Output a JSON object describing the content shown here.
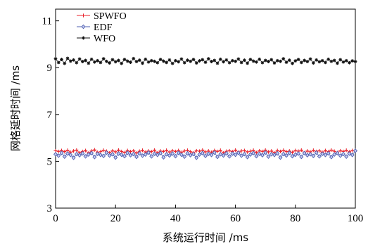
{
  "chart_data": {
    "type": "line",
    "xlabel": "系统运行时间 /ms",
    "ylabel": "网格延时时间 /ms",
    "xlim": [
      0,
      100
    ],
    "ylim": [
      3,
      11.5
    ],
    "xticks": [
      "0",
      "20",
      "40",
      "60",
      "80",
      "100"
    ],
    "yticks": [
      "3",
      "5",
      "7",
      "9",
      "11"
    ],
    "legend_position": "top-left",
    "x": [
      0,
      1,
      2,
      3,
      4,
      5,
      6,
      7,
      8,
      9,
      10,
      11,
      12,
      13,
      14,
      15,
      16,
      17,
      18,
      19,
      20,
      21,
      22,
      23,
      24,
      25,
      26,
      27,
      28,
      29,
      30,
      31,
      32,
      33,
      34,
      35,
      36,
      37,
      38,
      39,
      40,
      41,
      42,
      43,
      44,
      45,
      46,
      47,
      48,
      49,
      50,
      51,
      52,
      53,
      54,
      55,
      56,
      57,
      58,
      59,
      60,
      61,
      62,
      63,
      64,
      65,
      66,
      67,
      68,
      69,
      70,
      71,
      72,
      73,
      74,
      75,
      76,
      77,
      78,
      79,
      80,
      81,
      82,
      83,
      84,
      85,
      86,
      87,
      88,
      89,
      90,
      91,
      92,
      93,
      94,
      95,
      96,
      97,
      98,
      99,
      100
    ],
    "series": [
      {
        "name": "SPWFO",
        "color": "#e8202a",
        "marker": "plus",
        "values": [
          5.45,
          5.42,
          5.46,
          5.41,
          5.47,
          5.38,
          5.44,
          5.48,
          5.36,
          5.42,
          5.46,
          5.35,
          5.44,
          5.49,
          5.38,
          5.41,
          5.47,
          5.43,
          5.36,
          5.45,
          5.4,
          5.48,
          5.42,
          5.37,
          5.46,
          5.41,
          5.45,
          5.35,
          5.43,
          5.47,
          5.39,
          5.44,
          5.41,
          5.48,
          5.36,
          5.44,
          5.42,
          5.47,
          5.39,
          5.45,
          5.42,
          5.46,
          5.38,
          5.44,
          5.47,
          5.41,
          5.36,
          5.45,
          5.43,
          5.48,
          5.4,
          5.44,
          5.38,
          5.46,
          5.42,
          5.47,
          5.35,
          5.43,
          5.45,
          5.41,
          5.48,
          5.39,
          5.44,
          5.46,
          5.4,
          5.43,
          5.47,
          5.37,
          5.45,
          5.42,
          5.48,
          5.4,
          5.44,
          5.36,
          5.46,
          5.42,
          5.47,
          5.41,
          5.44,
          5.38,
          5.46,
          5.43,
          5.48,
          5.36,
          5.44,
          5.4,
          5.47,
          5.42,
          5.45,
          5.38,
          5.46,
          5.41,
          5.48,
          5.43,
          5.37,
          5.45,
          5.42,
          5.47,
          5.4,
          5.46,
          5.44
        ]
      },
      {
        "name": "EDF",
        "color": "#4f5fb0",
        "marker": "diamond",
        "values": [
          5.3,
          5.24,
          5.36,
          5.2,
          5.33,
          5.27,
          5.15,
          5.31,
          5.26,
          5.34,
          5.21,
          5.29,
          5.35,
          5.18,
          5.32,
          5.27,
          5.23,
          5.37,
          5.25,
          5.3,
          5.16,
          5.33,
          5.28,
          5.22,
          5.36,
          5.26,
          5.31,
          5.19,
          5.34,
          5.24,
          5.29,
          5.37,
          5.21,
          5.32,
          5.27,
          5.35,
          5.17,
          5.3,
          5.25,
          5.33,
          5.22,
          5.36,
          5.28,
          5.2,
          5.34,
          5.26,
          5.31,
          5.15,
          5.29,
          5.35,
          5.23,
          5.32,
          5.27,
          5.37,
          5.19,
          5.3,
          5.25,
          5.34,
          5.21,
          5.33,
          5.28,
          5.36,
          5.24,
          5.31,
          5.18,
          5.29,
          5.35,
          5.22,
          5.32,
          5.26,
          5.37,
          5.2,
          5.3,
          5.27,
          5.34,
          5.16,
          5.31,
          5.25,
          5.36,
          5.22,
          5.28,
          5.33,
          5.19,
          5.35,
          5.26,
          5.3,
          5.23,
          5.37,
          5.21,
          5.32,
          5.27,
          5.34,
          5.18,
          5.29,
          5.35,
          5.24,
          5.31,
          5.2,
          5.33,
          5.27,
          5.45
        ]
      },
      {
        "name": "WFO",
        "color": "#111111",
        "marker": "star",
        "values": [
          9.38,
          9.22,
          9.35,
          9.18,
          9.4,
          9.28,
          9.33,
          9.21,
          9.37,
          9.26,
          9.31,
          9.19,
          9.36,
          9.24,
          9.3,
          9.22,
          9.38,
          9.27,
          9.2,
          9.34,
          9.25,
          9.31,
          9.18,
          9.35,
          9.28,
          9.23,
          9.39,
          9.26,
          9.32,
          9.19,
          9.36,
          9.24,
          9.3,
          9.27,
          9.21,
          9.35,
          9.28,
          9.22,
          9.33,
          9.18,
          9.3,
          9.25,
          9.37,
          9.21,
          9.32,
          9.27,
          9.35,
          9.2,
          9.29,
          9.34,
          9.23,
          9.38,
          9.26,
          9.31,
          9.19,
          9.36,
          9.25,
          9.33,
          9.21,
          9.3,
          9.27,
          9.37,
          9.22,
          9.32,
          9.19,
          9.35,
          9.28,
          9.24,
          9.36,
          9.21,
          9.31,
          9.26,
          9.34,
          9.2,
          9.3,
          9.27,
          9.38,
          9.23,
          9.32,
          9.18,
          9.29,
          9.35,
          9.22,
          9.31,
          9.26,
          9.37,
          9.2,
          9.33,
          9.25,
          9.3,
          9.22,
          9.36,
          9.27,
          9.31,
          9.19,
          9.34,
          9.24,
          9.3,
          9.21,
          9.29,
          9.26
        ]
      }
    ]
  }
}
